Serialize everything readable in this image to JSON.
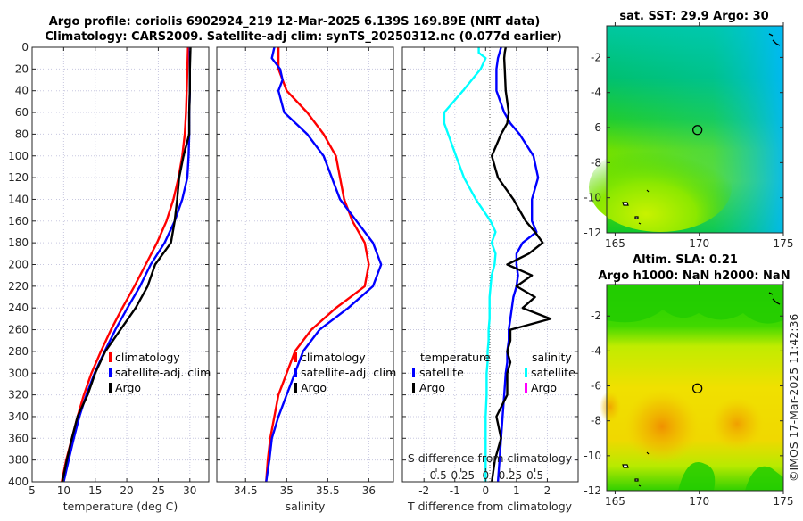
{
  "header": {
    "title_line1": "Argo profile: coriolis 6902924_219 12-Mar-2025 6.139S 169.89E (NRT data)",
    "title_line2": "Climatology: CARS2009. Satellite-adj clim: synTS_20250312.nc (0.077d earlier)"
  },
  "colors": {
    "climatology": "#ff0000",
    "satellite": "#0000ff",
    "argo": "#000000",
    "salinity_satellite": "#00ffff",
    "salinity_argo": "#ff00ff"
  },
  "footer_credit": "©IMOS 17-Mar-2025 11:42:36",
  "chart_data": [
    {
      "type": "line",
      "id": "temperature",
      "xlabel": "temperature (deg C)",
      "ylabel": "",
      "xlim": [
        5,
        33
      ],
      "ylim": [
        400,
        0
      ],
      "xticks": [
        5,
        10,
        15,
        20,
        25,
        30
      ],
      "yticks": [
        0,
        20,
        40,
        60,
        80,
        100,
        120,
        140,
        160,
        180,
        200,
        220,
        240,
        260,
        280,
        300,
        320,
        340,
        360,
        380,
        400
      ],
      "grid": true,
      "legend": [
        "climatology",
        "satellite-adj. clim",
        "Argo"
      ],
      "legend_position": "lower-right",
      "depth": [
        0,
        20,
        40,
        60,
        80,
        100,
        120,
        140,
        160,
        180,
        200,
        220,
        240,
        260,
        280,
        300,
        320,
        340,
        360,
        380,
        400
      ],
      "series": [
        {
          "name": "climatology",
          "values": [
            29.7,
            29.6,
            29.5,
            29.4,
            29.2,
            28.8,
            28.2,
            27.4,
            26.3,
            24.8,
            23.0,
            21.2,
            19.3,
            17.5,
            15.9,
            14.4,
            13.2,
            12.2,
            11.3,
            10.4,
            9.7
          ]
        },
        {
          "name": "satellite-adj. clim",
          "values": [
            30.0,
            30.0,
            30.0,
            29.9,
            29.9,
            29.8,
            29.6,
            28.8,
            27.6,
            26.0,
            23.8,
            22.1,
            20.1,
            18.2,
            16.5,
            14.9,
            13.6,
            12.5,
            11.6,
            10.8,
            10.0
          ]
        },
        {
          "name": "Argo",
          "values": [
            30.1,
            30.0,
            30.0,
            29.9,
            29.9,
            29.0,
            28.3,
            28.0,
            27.6,
            27.0,
            24.5,
            23.3,
            21.4,
            19.0,
            16.6,
            15.0,
            13.8,
            12.2,
            11.3,
            10.5,
            9.8
          ]
        }
      ]
    },
    {
      "type": "line",
      "id": "salinity",
      "xlabel": "salinity",
      "xlim": [
        34.15,
        36.3
      ],
      "ylim": [
        400,
        0
      ],
      "xticks": [
        34.5,
        35,
        35.5,
        36
      ],
      "grid": true,
      "legend": [
        "climatology",
        "satellite-adj. clim",
        "Argo"
      ],
      "legend_position": "lower-center",
      "depth": [
        0,
        10,
        20,
        30,
        40,
        60,
        80,
        100,
        120,
        140,
        160,
        180,
        200,
        220,
        240,
        260,
        280,
        300,
        320,
        340,
        360,
        380,
        400
      ],
      "series": [
        {
          "name": "climatology",
          "values": [
            34.9,
            34.9,
            34.9,
            34.95,
            35.0,
            35.25,
            35.45,
            35.6,
            35.65,
            35.7,
            35.8,
            35.95,
            36.0,
            35.95,
            35.6,
            35.3,
            35.1,
            35.0,
            34.9,
            34.85,
            34.8,
            34.77,
            34.75
          ]
        },
        {
          "name": "satellite-adj. clim",
          "values": [
            34.85,
            34.82,
            34.92,
            34.95,
            34.9,
            34.97,
            35.25,
            35.45,
            35.55,
            35.65,
            35.85,
            36.05,
            36.15,
            36.05,
            35.75,
            35.4,
            35.2,
            35.1,
            35.0,
            34.9,
            34.82,
            34.79,
            34.75
          ]
        },
        {
          "name": "Argo",
          "values": []
        }
      ]
    },
    {
      "type": "line",
      "id": "difference",
      "xlabel": "T difference from climatology",
      "x2label": "S difference from climatology",
      "xlim": [
        -2.7,
        3.0
      ],
      "ylim": [
        400,
        0
      ],
      "xticks": [
        -2,
        -1,
        0,
        1,
        2
      ],
      "x2ticks": [
        -0.5,
        -0.25,
        0,
        0.25,
        0.5
      ],
      "grid": true,
      "legend_temperature_title": "temperature",
      "legend_salinity_title": "salinity",
      "legend_temperature": [
        "satellite",
        "Argo"
      ],
      "legend_salinity": [
        "satellite",
        "Argo"
      ],
      "depth": [
        0,
        5,
        10,
        20,
        40,
        60,
        70,
        80,
        100,
        120,
        140,
        160,
        170,
        180,
        190,
        200,
        210,
        220,
        230,
        240,
        250,
        260,
        270,
        280,
        290,
        300,
        320,
        340,
        360,
        380,
        400
      ],
      "series": [
        {
          "name": "T satellite",
          "values": [
            0.5,
            0.45,
            0.4,
            0.35,
            0.35,
            0.6,
            0.8,
            1.1,
            1.55,
            1.7,
            1.5,
            1.5,
            1.65,
            1.2,
            1.0,
            1.0,
            1.05,
            1.0,
            0.9,
            0.85,
            0.8,
            0.75,
            0.75,
            0.7,
            0.7,
            0.65,
            0.6,
            0.55,
            0.5,
            0.45,
            0.4
          ]
        },
        {
          "name": "T Argo",
          "values": [
            0.65,
            0.62,
            0.6,
            0.62,
            0.65,
            0.75,
            0.7,
            0.5,
            0.2,
            0.4,
            0.9,
            1.3,
            1.6,
            1.85,
            1.4,
            0.7,
            1.5,
            1.0,
            1.6,
            1.2,
            2.1,
            0.8,
            0.8,
            0.7,
            0.8,
            0.7,
            0.7,
            0.35,
            0.5,
            0.3,
            0.2
          ]
        },
        {
          "name": "S satellite",
          "values": [
            -0.07,
            -0.07,
            0.0,
            -0.05,
            -0.23,
            -0.42,
            -0.42,
            -0.38,
            -0.3,
            -0.22,
            -0.1,
            0.05,
            0.1,
            0.06,
            0.1,
            0.09,
            0.06,
            0.05,
            0.04,
            0.04,
            0.04,
            0.03,
            0.03,
            0.02,
            0.02,
            0.01,
            0.01,
            0.0,
            0.0,
            0.0,
            0.0
          ]
        },
        {
          "name": "S Argo",
          "values": []
        }
      ]
    },
    {
      "type": "heatmap",
      "id": "sst-map",
      "title": "sat. SST: 29.9 Argo: 30",
      "xlim": [
        164.5,
        175
      ],
      "ylim": [
        -12,
        -0.2
      ],
      "xticks": [
        165,
        170,
        175
      ],
      "yticks": [
        -2,
        -4,
        -6,
        -8,
        -10,
        -12
      ],
      "argo_position": {
        "lon": 169.89,
        "lat": -6.139
      },
      "colormap": "blue-green-yellow"
    },
    {
      "type": "heatmap",
      "id": "sla-map",
      "title_line1": "Altim. SLA: 0.21",
      "title_line2": "Argo h1000: NaN h2000: NaN",
      "xlim": [
        164.5,
        175
      ],
      "ylim": [
        -12,
        -0.2
      ],
      "xticks": [
        165,
        170,
        175
      ],
      "yticks": [
        -2,
        -4,
        -6,
        -8,
        -10,
        -12
      ],
      "argo_position": {
        "lon": 169.89,
        "lat": -6.139
      },
      "colormap": "green-yellow-orange"
    }
  ]
}
